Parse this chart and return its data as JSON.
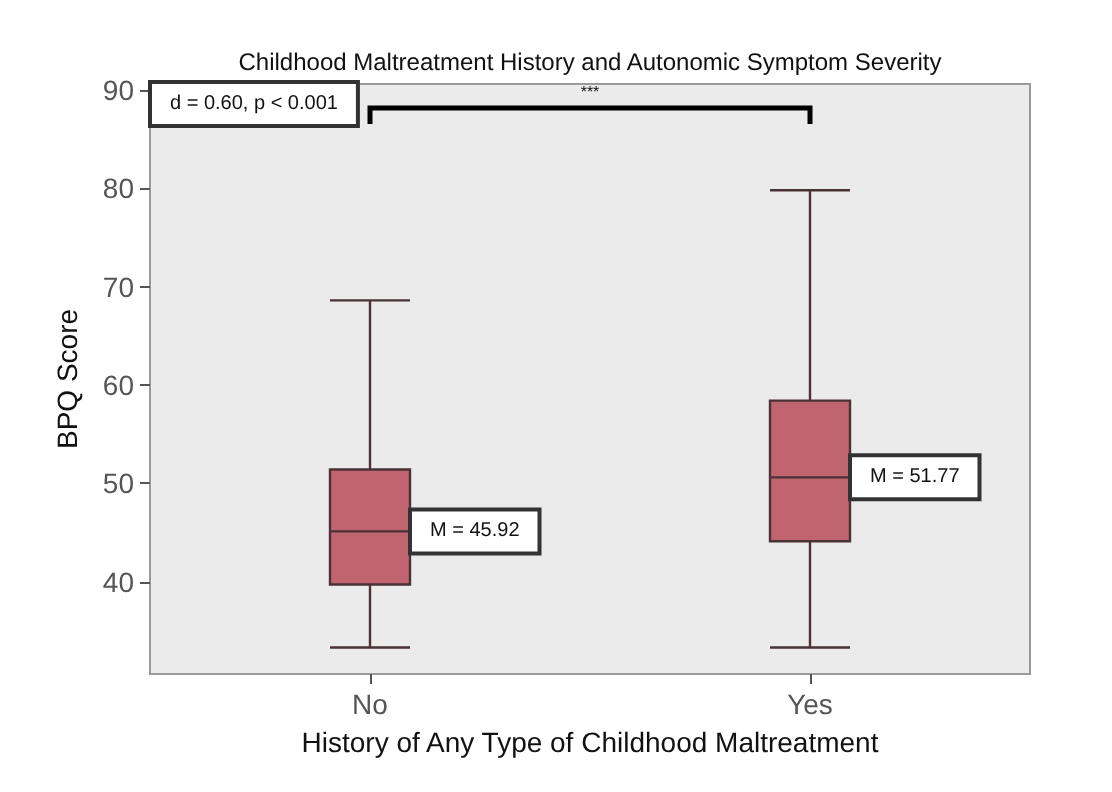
{
  "chart_data": {
    "type": "box",
    "title": "Childhood Maltreatment History and Autonomic Symptom Severity",
    "xlabel": "History of Any Type of Childhood Maltreatment",
    "ylabel": "BPQ Score",
    "categories": [
      "No",
      "Yes"
    ],
    "series": [
      {
        "color": "#c0646f",
        "boxes": [
          {
            "low": 33.3,
            "q1": 39.7,
            "median": 45.1,
            "q3": 51.4,
            "high": 68.6
          },
          {
            "low": 33.3,
            "q1": 44.1,
            "median": 50.6,
            "q3": 58.4,
            "high": 79.8
          }
        ]
      }
    ],
    "ylim": [
      30.6,
      90.6
    ],
    "yticks": [
      40,
      50,
      60,
      70,
      80,
      90
    ],
    "grid": false,
    "annotations": [
      "d = 0.60, p < 0.001",
      "***",
      "M = 45.92",
      "M = 51.77"
    ]
  }
}
